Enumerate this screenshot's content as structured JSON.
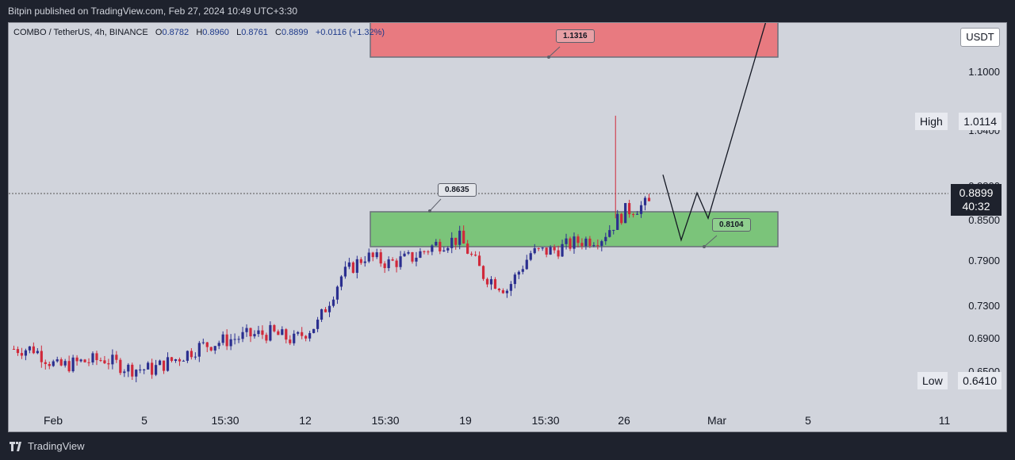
{
  "header": {
    "published": "Bitpin published on TradingView.com, Feb 27, 2024 10:49 UTC+3:30"
  },
  "legend": {
    "symbol": "COMBO / TetherUS, 4h, BINANCE",
    "open_label": "O",
    "open": "0.8782",
    "high_label": "H",
    "high": "0.8960",
    "low_label": "L",
    "low": "0.8761",
    "close_label": "C",
    "close": "0.8899",
    "change": "+0.0116 (+1.32%)"
  },
  "price_axis": {
    "unit": "USDT",
    "ticks": [
      "1.1000",
      "1.0400",
      "0.9800",
      "0.8500",
      "0.7900",
      "0.7300",
      "0.6900",
      "0.6500"
    ],
    "high_label": "High",
    "high_value": "1.0114",
    "low_label": "Low",
    "low_value": "0.6410",
    "current_price": "0.8899",
    "countdown": "40:32"
  },
  "time_axis": {
    "labels": [
      "Feb",
      "5",
      "15:30",
      "12",
      "15:30",
      "19",
      "15:30",
      "26",
      "Mar",
      "5",
      "11"
    ]
  },
  "annotations": {
    "resistance_callout": "1.1316",
    "entry_callout": "0.8635",
    "support_callout": "0.8104"
  },
  "colors": {
    "up": "#2b2f8f",
    "down": "#d0293a",
    "resistance_zone": "#e87a80",
    "support_zone": "#7bc47a",
    "background": "#d1d4dc"
  },
  "footer": {
    "brand": "TradingView"
  },
  "chart_data": {
    "type": "candlestick",
    "symbol": "COMBO/USDT",
    "timeframe": "4h",
    "ylim": [
      0.62,
      1.15
    ],
    "x": [
      "Feb 1",
      "Feb 2",
      "Feb 3",
      "Feb 4",
      "Feb 5",
      "Feb 6",
      "Feb 7",
      "Feb 8",
      "Feb 9",
      "Feb 10",
      "Feb 11",
      "Feb 12",
      "Feb 13",
      "Feb 14",
      "Feb 15",
      "Feb 16",
      "Feb 17",
      "Feb 18",
      "Feb 19",
      "Feb 20",
      "Feb 21",
      "Feb 22",
      "Feb 23",
      "Feb 24",
      "Feb 25",
      "Feb 26",
      "Feb 27"
    ],
    "close": [
      0.69,
      0.665,
      0.672,
      0.676,
      0.663,
      0.662,
      0.676,
      0.693,
      0.701,
      0.708,
      0.712,
      0.702,
      0.725,
      0.79,
      0.818,
      0.808,
      0.816,
      0.834,
      0.842,
      0.792,
      0.772,
      0.822,
      0.826,
      0.838,
      0.844,
      0.88,
      0.8899
    ],
    "zones": [
      {
        "name": "resistance",
        "from": 1.1,
        "to": 1.14
      },
      {
        "name": "support",
        "from": 0.81,
        "to": 0.856
      }
    ],
    "projection": [
      0.93,
      0.84,
      0.905,
      0.87,
      1.16
    ],
    "levels": {
      "high": 1.0114,
      "low": 0.641,
      "current": 0.8899
    }
  }
}
